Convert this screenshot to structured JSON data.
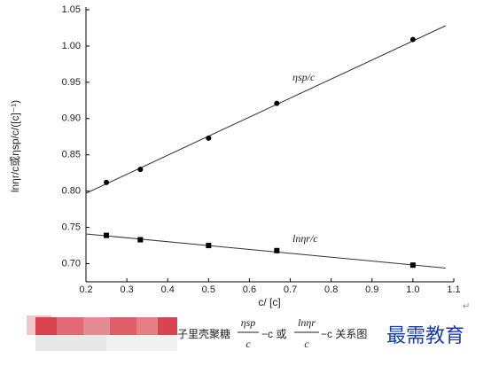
{
  "chart_data": {
    "type": "scatter",
    "xlabel": "c/ [c]",
    "ylabel": "lnηr/c或ηsp/c/([c]⁻¹)",
    "xlim": [
      0.2,
      1.1
    ],
    "ylim": [
      0.675,
      1.05
    ],
    "xticks": [
      0.2,
      0.3,
      0.4,
      0.5,
      0.6,
      0.7,
      0.8,
      0.9,
      {
        "value": 1,
        "label": "1.0"
      },
      1.1
    ],
    "yticks": [
      {
        "value": 0.7,
        "label": "0.70"
      },
      0.75,
      {
        "value": 0.8,
        "label": "0.80"
      },
      0.85,
      {
        "value": 0.9,
        "label": "0.90"
      },
      0.95,
      {
        "value": 1,
        "label": "1.00"
      },
      1.05
    ],
    "series": [
      {
        "name": "ηsp/c",
        "marker": "circle",
        "color": "#000000",
        "x": [
          0.25,
          0.333,
          0.5,
          0.667,
          1.0
        ],
        "values": [
          0.812,
          0.83,
          0.873,
          0.921,
          1.009
        ],
        "fit": {
          "x": [
            0.2,
            1.08
          ],
          "values": [
            0.797,
            1.028
          ]
        }
      },
      {
        "name": "lnηr/c",
        "marker": "square",
        "color": "#000000",
        "x": [
          0.25,
          0.333,
          0.5,
          0.667,
          1.0
        ],
        "values": [
          0.739,
          0.733,
          0.725,
          0.718,
          0.698
        ],
        "fit": {
          "x": [
            0.2,
            1.08
          ],
          "values": [
            0.741,
            0.694
          ]
        }
      }
    ]
  },
  "caption": {
    "prefix": "子里壳聚糖",
    "frac1_num": "ηsp",
    "frac1_den": "c",
    "mid": "−c 或",
    "frac2_num": "lnηr",
    "frac2_den": "c",
    "suffix": "−c 关系图"
  },
  "watermark": "最需教育",
  "return_mark": "↵"
}
